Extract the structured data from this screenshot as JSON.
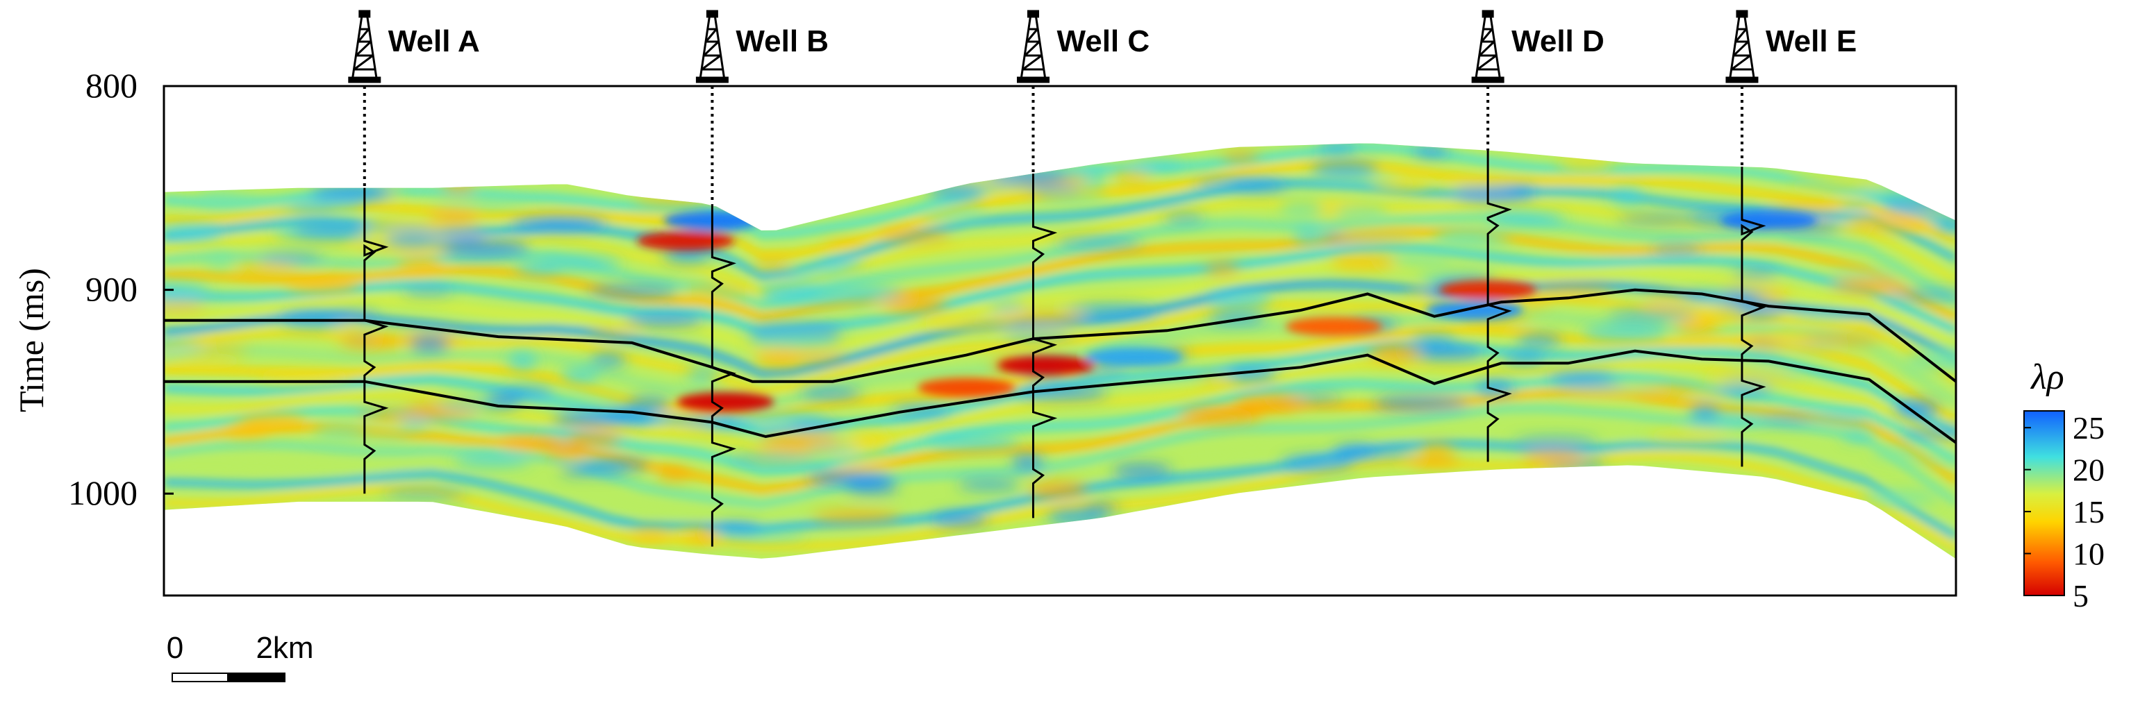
{
  "chart_data": {
    "type": "heatmap",
    "ylabel": "Time (ms)",
    "ylim": [
      800,
      1050
    ],
    "yticks": [
      "800",
      "900",
      "1000"
    ],
    "grid": false,
    "colorbar": {
      "title": "λρ",
      "range": [
        5,
        27
      ],
      "ticks": [
        "25",
        "20",
        "15",
        "10",
        "5"
      ],
      "colormap": [
        "#d40000",
        "#ff5a00",
        "#ffd400",
        "#d8f040",
        "#40e0e0",
        "#1060ff"
      ]
    },
    "wells": [
      {
        "name": "Well A",
        "x_km": 3.0
      },
      {
        "name": "Well B",
        "x_km": 8.2
      },
      {
        "name": "Well C",
        "x_km": 13.0
      },
      {
        "name": "Well D",
        "x_km": 19.8
      },
      {
        "name": "Well E",
        "x_km": 23.6
      }
    ],
    "section_top_ms": [
      [
        0,
        852
      ],
      [
        2,
        850
      ],
      [
        4,
        850
      ],
      [
        6,
        848
      ],
      [
        7,
        854
      ],
      [
        8.2,
        858
      ],
      [
        9,
        872
      ],
      [
        10,
        864
      ],
      [
        12,
        848
      ],
      [
        14,
        838
      ],
      [
        16,
        830
      ],
      [
        18,
        828
      ],
      [
        20,
        832
      ],
      [
        22,
        838
      ],
      [
        24,
        840
      ],
      [
        25.5,
        846
      ],
      [
        26.8,
        866
      ]
    ],
    "section_bottom_ms": [
      [
        0,
        1008
      ],
      [
        2,
        1004
      ],
      [
        4,
        1004
      ],
      [
        6,
        1016
      ],
      [
        7,
        1026
      ],
      [
        8.2,
        1030
      ],
      [
        9,
        1032
      ],
      [
        10,
        1028
      ],
      [
        12,
        1020
      ],
      [
        14,
        1012
      ],
      [
        16,
        1000
      ],
      [
        18,
        992
      ],
      [
        20,
        988
      ],
      [
        22,
        986
      ],
      [
        24,
        992
      ],
      [
        25.5,
        1004
      ],
      [
        26.8,
        1032
      ]
    ],
    "horizon_upper_ms": [
      [
        0,
        915
      ],
      [
        3,
        915
      ],
      [
        5,
        923
      ],
      [
        7,
        926
      ],
      [
        8.2,
        938
      ],
      [
        8.8,
        945
      ],
      [
        10,
        945
      ],
      [
        12,
        932
      ],
      [
        13,
        924
      ],
      [
        15,
        920
      ],
      [
        17,
        910
      ],
      [
        18,
        902
      ],
      [
        19,
        913
      ],
      [
        20,
        906
      ],
      [
        21,
        904
      ],
      [
        22,
        900
      ],
      [
        23,
        902
      ],
      [
        24,
        908
      ],
      [
        25.5,
        912
      ],
      [
        26.8,
        945
      ]
    ],
    "horizon_lower_ms": [
      [
        0,
        945
      ],
      [
        3,
        945
      ],
      [
        5,
        957
      ],
      [
        7,
        960
      ],
      [
        8.2,
        965
      ],
      [
        9,
        972
      ],
      [
        11,
        960
      ],
      [
        13,
        950
      ],
      [
        15,
        944
      ],
      [
        17,
        938
      ],
      [
        18,
        932
      ],
      [
        19,
        946
      ],
      [
        20,
        936
      ],
      [
        21,
        936
      ],
      [
        22,
        930
      ],
      [
        23,
        934
      ],
      [
        24,
        935
      ],
      [
        25.5,
        944
      ],
      [
        26.8,
        975
      ]
    ],
    "anomalies": [
      {
        "x_km": 7.8,
        "t_ms": 876,
        "value": 6
      },
      {
        "x_km": 8.4,
        "t_ms": 955,
        "value": 5
      },
      {
        "x_km": 13.2,
        "t_ms": 937,
        "value": 5
      },
      {
        "x_km": 12.0,
        "t_ms": 948,
        "value": 8
      },
      {
        "x_km": 19.8,
        "t_ms": 900,
        "value": 7
      },
      {
        "x_km": 19.6,
        "t_ms": 910,
        "value": 25
      },
      {
        "x_km": 24.0,
        "t_ms": 866,
        "value": 26
      },
      {
        "x_km": 8.2,
        "t_ms": 866,
        "value": 26
      },
      {
        "x_km": 14.5,
        "t_ms": 933,
        "value": 24
      },
      {
        "x_km": 17.5,
        "t_ms": 918,
        "value": 9
      }
    ],
    "scalebar": {
      "labels": [
        "0",
        "2km"
      ]
    }
  }
}
